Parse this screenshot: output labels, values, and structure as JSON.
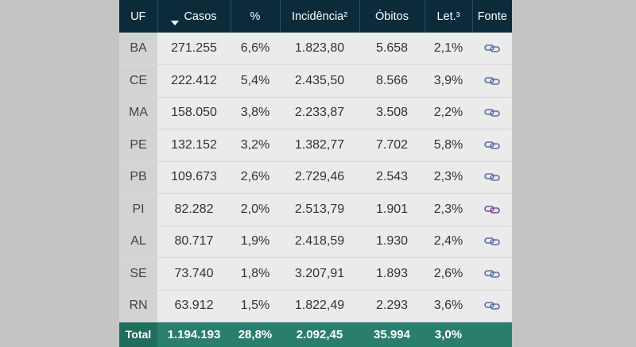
{
  "header": {
    "uf": "UF",
    "casos": "Casos",
    "pct": "%",
    "incidencia": "Incidência²",
    "obitos": "Óbitos",
    "letalidade": "Let.³",
    "fonte": "Fonte",
    "sort_icon": "sort-descending-icon"
  },
  "rows": [
    {
      "uf": "BA",
      "casos": "271.255",
      "pct": "6,6%",
      "incidencia": "1.823,80",
      "obitos": "5.658",
      "letalidade": "2,1%",
      "link_color": "#5b6fa8"
    },
    {
      "uf": "CE",
      "casos": "222.412",
      "pct": "5,4%",
      "incidencia": "2.435,50",
      "obitos": "8.566",
      "letalidade": "3,9%",
      "link_color": "#5b6fa8"
    },
    {
      "uf": "MA",
      "casos": "158.050",
      "pct": "3,8%",
      "incidencia": "2.233,87",
      "obitos": "3.508",
      "letalidade": "2,2%",
      "link_color": "#5b6fa8"
    },
    {
      "uf": "PE",
      "casos": "132.152",
      "pct": "3,2%",
      "incidencia": "1.382,77",
      "obitos": "7.702",
      "letalidade": "5,8%",
      "link_color": "#5b6fa8"
    },
    {
      "uf": "PB",
      "casos": "109.673",
      "pct": "2,6%",
      "incidencia": "2.729,46",
      "obitos": "2.543",
      "letalidade": "2,3%",
      "link_color": "#5b6fa8"
    },
    {
      "uf": "PI",
      "casos": "82.282",
      "pct": "2,0%",
      "incidencia": "2.513,79",
      "obitos": "1.901",
      "letalidade": "2,3%",
      "link_color": "#7b4fa0"
    },
    {
      "uf": "AL",
      "casos": "80.717",
      "pct": "1,9%",
      "incidencia": "2.418,59",
      "obitos": "1.930",
      "letalidade": "2,4%",
      "link_color": "#5b6fa8"
    },
    {
      "uf": "SE",
      "casos": "73.740",
      "pct": "1,8%",
      "incidencia": "3.207,91",
      "obitos": "1.893",
      "letalidade": "2,6%",
      "link_color": "#5b6fa8"
    },
    {
      "uf": "RN",
      "casos": "63.912",
      "pct": "1,5%",
      "incidencia": "1.822,49",
      "obitos": "2.293",
      "letalidade": "3,6%",
      "link_color": "#5b6fa8"
    }
  ],
  "total": {
    "label": "Total",
    "casos": "1.194.193",
    "pct": "28,8%",
    "incidencia": "2.092,45",
    "obitos": "35.994",
    "letalidade": "3,0%"
  },
  "link_icon": "chain-link-icon",
  "colors": {
    "header_bg": "#0b2b3a",
    "total_bg": "#2a7f6c",
    "page_bg": "#c4c4c4"
  }
}
